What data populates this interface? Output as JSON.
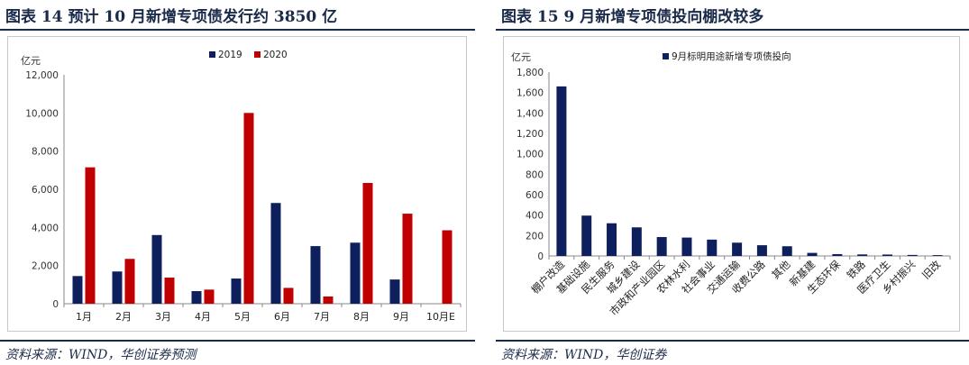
{
  "left": {
    "fig_title": "图表 14   预计 10 月新增专项债发行约 3850 亿",
    "source": "资料来源：WIND，华创证券预测"
  },
  "right": {
    "fig_title": "图表 15   9 月新增专项债投向棚改较多",
    "source": "资料来源：WIND，华创证券"
  },
  "chart_data": [
    {
      "type": "bar",
      "ylabel": "亿元",
      "ylim": [
        0,
        12000
      ],
      "yticks": [
        0,
        2000,
        4000,
        6000,
        8000,
        10000,
        12000
      ],
      "ytick_labels": [
        "0",
        "2,000",
        "4,000",
        "6,000",
        "8,000",
        "10,000",
        "12,000"
      ],
      "categories": [
        "1月",
        "2月",
        "3月",
        "4月",
        "5月",
        "6月",
        "7月",
        "8月",
        "9月",
        "10月E"
      ],
      "legend_position": "top",
      "series": [
        {
          "name": "2019",
          "color": "#0d1f5c",
          "values": [
            1450,
            1690,
            3600,
            660,
            1320,
            5280,
            3020,
            3200,
            1270,
            null
          ]
        },
        {
          "name": "2020",
          "color": "#c00000",
          "values": [
            7150,
            2350,
            1370,
            740,
            10000,
            830,
            380,
            6330,
            4720,
            3850
          ]
        }
      ]
    },
    {
      "type": "bar",
      "ylabel": "亿元",
      "ylim": [
        0,
        1800
      ],
      "yticks": [
        0,
        200,
        400,
        600,
        800,
        1000,
        1200,
        1400,
        1600,
        1800
      ],
      "ytick_labels": [
        "0",
        "200",
        "400",
        "600",
        "800",
        "1,000",
        "1,200",
        "1,400",
        "1,600",
        "1,800"
      ],
      "categories": [
        "棚户改造",
        "基础设施",
        "民生服务",
        "城乡建设",
        "市政和产业园区",
        "农林水利",
        "社会事业",
        "交通运输",
        "收费公路",
        "其他",
        "新基建",
        "生态环保",
        "铁路",
        "医疗卫生",
        "乡村振兴",
        "旧改"
      ],
      "legend_position": "top",
      "series": [
        {
          "name": "9月标明用途新增专项债投向",
          "color": "#0d1f5c",
          "values": [
            1660,
            395,
            320,
            280,
            185,
            180,
            160,
            130,
            105,
            95,
            30,
            18,
            15,
            14,
            10,
            8
          ]
        }
      ]
    }
  ]
}
